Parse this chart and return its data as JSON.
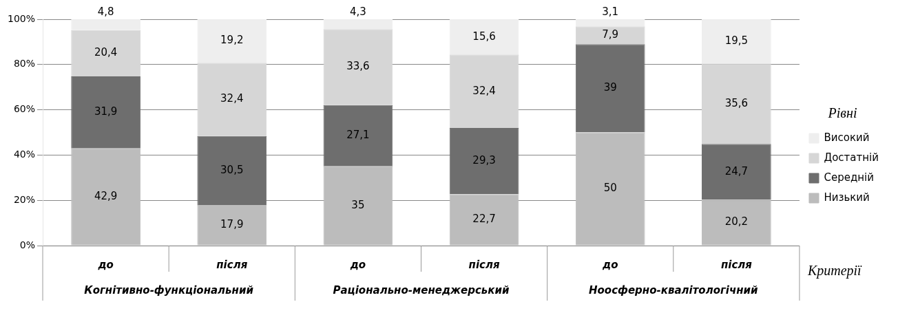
{
  "chart_data": {
    "type": "bar",
    "stacked": true,
    "categories": [
      "до",
      "після",
      "до",
      "після",
      "до",
      "після"
    ],
    "annotations": [
      "Когнітивно-функціональний",
      "Раціонально-менеджерський",
      "Ноосферно-квалітологічний"
    ],
    "xlabel": "Критерії",
    "legend_title": "Рівні",
    "legend": "right",
    "grid": "y",
    "ylim": [
      0,
      100
    ],
    "yticks": [
      {
        "value": 0,
        "label": "0%"
      },
      {
        "value": 20,
        "label": "20%"
      },
      {
        "value": 40,
        "label": "40%"
      },
      {
        "value": 60,
        "label": "60%"
      },
      {
        "value": 80,
        "label": "80%"
      },
      {
        "value": 100,
        "label": "100%"
      }
    ],
    "series": [
      {
        "name": "Низький",
        "color": "#bcbcbc",
        "values": [
          42.9,
          17.9,
          35,
          22.7,
          50,
          20.2
        ],
        "value_labels": [
          "42,9",
          "17,9",
          "35",
          "22,7",
          "50",
          "20,2"
        ]
      },
      {
        "name": "Середній",
        "color": "#6e6e6e",
        "values": [
          31.9,
          30.5,
          27.1,
          29.3,
          39,
          24.7
        ],
        "value_labels": [
          "31,9",
          "30,5",
          "27,1",
          "29,3",
          "39",
          "24,7"
        ]
      },
      {
        "name": "Достатній",
        "color": "#d6d6d6",
        "values": [
          20.4,
          32.4,
          33.6,
          32.4,
          7.9,
          35.6
        ],
        "value_labels": [
          "20,4",
          "32,4",
          "33,6",
          "32,4",
          "7,9",
          "35,6"
        ]
      },
      {
        "name": "Високий",
        "color": "#eeeeee",
        "values": [
          4.8,
          19.2,
          4.3,
          15.6,
          3.1,
          19.5
        ],
        "value_labels": [
          "4,8",
          "19,2",
          "4,3",
          "15,6",
          "3,1",
          "19,5"
        ]
      }
    ]
  }
}
